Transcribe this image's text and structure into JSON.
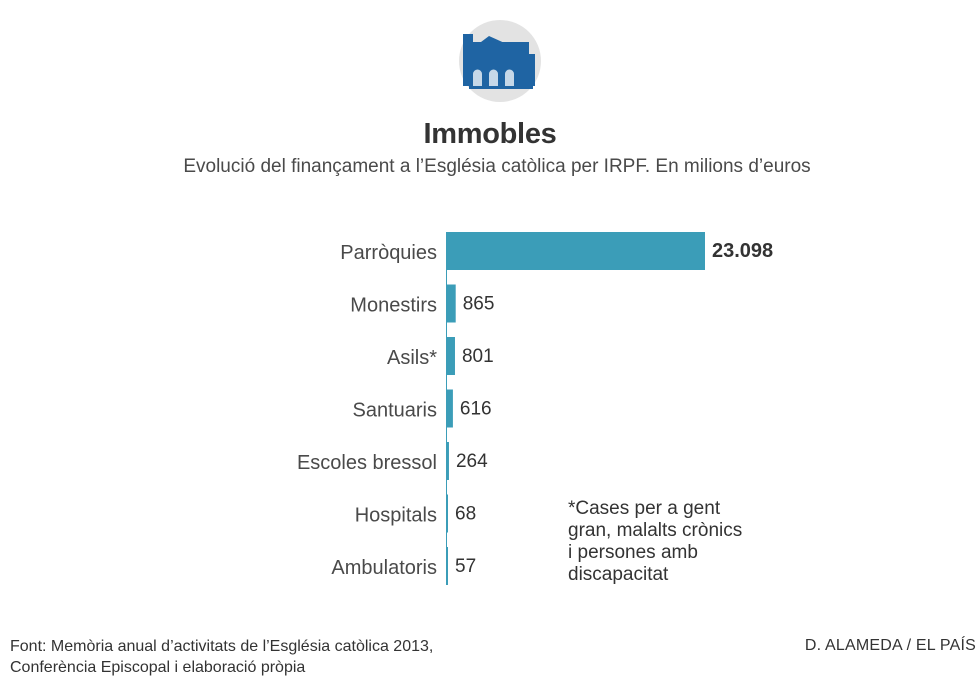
{
  "header": {
    "icon": "church-building-icon",
    "title": "Immobles",
    "subtitle": "Evolució del finançament a l’Església catòlica per IRPF. En milions d’euros"
  },
  "chart_data": {
    "type": "bar",
    "orientation": "horizontal",
    "categories": [
      "Parròquies",
      "Monestirs",
      "Asils*",
      "Santuaris",
      "Escoles bressol",
      "Hospitals",
      "Ambulatoris"
    ],
    "values": [
      23098,
      865,
      801,
      616,
      264,
      68,
      57
    ],
    "value_labels": [
      "23.098",
      "865",
      "801",
      "616",
      "264",
      "68",
      "57"
    ],
    "title": "Immobles",
    "bar_color": "#3b9db8",
    "axis_line_color": "#3b9db8",
    "grid": false,
    "legend": "none"
  },
  "note": {
    "lines": [
      "*Cases per a gent",
      "gran, malalts crònics",
      "i persones amb",
      "discapacitat"
    ]
  },
  "footer": {
    "source_lines": [
      "Font: Memòria anual d’activitats de l’Església catòlica 2013,",
      "Conferència Episcopal i elaboració pròpia"
    ],
    "credit": "D. ALAMEDA / EL PAÍS"
  }
}
